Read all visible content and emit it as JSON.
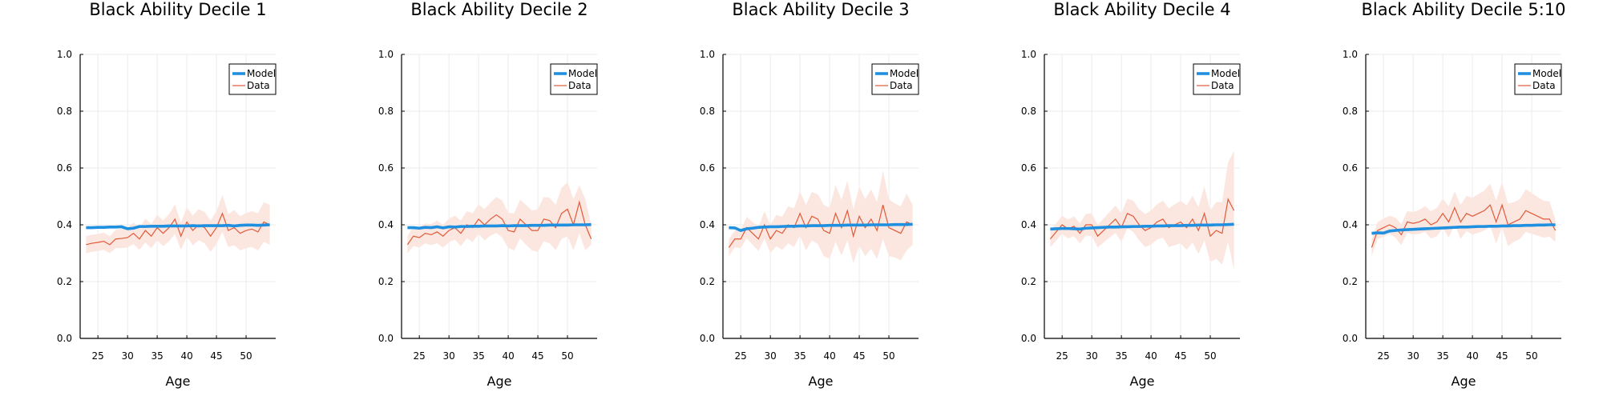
{
  "colors": {
    "model": "#1f8fdf",
    "data": "#e05a38",
    "band": "#fbe6e0",
    "grid": "#ebebeb",
    "axis": "#000000"
  },
  "legend": {
    "model_label": "Model",
    "data_label": "Data",
    "placement": "top-right"
  },
  "chart_data": [
    {
      "type": "line",
      "title": "Black Ability Decile 1",
      "xlabel": "Age",
      "ylabel": "",
      "xlim": [
        22,
        55
      ],
      "ylim": [
        0,
        1
      ],
      "xticks": [
        25,
        30,
        35,
        40,
        45,
        50
      ],
      "yticks": [
        "0.0",
        "0.2",
        "0.4",
        "0.6",
        "0.8",
        "1.0"
      ],
      "grid": true,
      "x": [
        23,
        24,
        25,
        26,
        27,
        28,
        29,
        30,
        31,
        32,
        33,
        34,
        35,
        36,
        37,
        38,
        39,
        40,
        41,
        42,
        43,
        44,
        45,
        46,
        47,
        48,
        49,
        50,
        51,
        52,
        53,
        54
      ],
      "series": [
        {
          "name": "Model",
          "values": [
            0.39,
            0.39,
            0.391,
            0.391,
            0.392,
            0.392,
            0.393,
            0.386,
            0.388,
            0.394,
            0.394,
            0.395,
            0.395,
            0.395,
            0.396,
            0.396,
            0.396,
            0.396,
            0.397,
            0.396,
            0.397,
            0.397,
            0.397,
            0.397,
            0.398,
            0.396,
            0.398,
            0.399,
            0.399,
            0.398,
            0.399,
            0.4
          ]
        },
        {
          "name": "Data",
          "values": [
            0.33,
            0.335,
            0.338,
            0.342,
            0.33,
            0.35,
            0.352,
            0.355,
            0.37,
            0.35,
            0.38,
            0.36,
            0.39,
            0.37,
            0.39,
            0.42,
            0.36,
            0.41,
            0.38,
            0.4,
            0.39,
            0.36,
            0.39,
            0.44,
            0.38,
            0.39,
            0.37,
            0.38,
            0.385,
            0.375,
            0.41,
            0.4
          ],
          "lower": [
            0.3,
            0.305,
            0.308,
            0.312,
            0.3,
            0.318,
            0.318,
            0.32,
            0.332,
            0.312,
            0.338,
            0.318,
            0.345,
            0.325,
            0.342,
            0.368,
            0.312,
            0.358,
            0.328,
            0.345,
            0.335,
            0.305,
            0.332,
            0.375,
            0.322,
            0.328,
            0.31,
            0.318,
            0.322,
            0.31,
            0.34,
            0.33
          ],
          "upper": [
            0.36,
            0.365,
            0.368,
            0.372,
            0.36,
            0.382,
            0.386,
            0.39,
            0.408,
            0.388,
            0.422,
            0.402,
            0.435,
            0.415,
            0.438,
            0.472,
            0.408,
            0.462,
            0.432,
            0.455,
            0.445,
            0.415,
            0.448,
            0.505,
            0.438,
            0.452,
            0.43,
            0.442,
            0.448,
            0.44,
            0.48,
            0.47
          ]
        }
      ]
    },
    {
      "type": "line",
      "title": "Black Ability Decile 2",
      "xlabel": "Age",
      "ylabel": "",
      "xlim": [
        22,
        55
      ],
      "ylim": [
        0,
        1
      ],
      "xticks": [
        25,
        30,
        35,
        40,
        45,
        50
      ],
      "yticks": [
        "0.0",
        "0.2",
        "0.4",
        "0.6",
        "0.8",
        "1.0"
      ],
      "grid": true,
      "x": [
        23,
        24,
        25,
        26,
        27,
        28,
        29,
        30,
        31,
        32,
        33,
        34,
        35,
        36,
        37,
        38,
        39,
        40,
        41,
        42,
        43,
        44,
        45,
        46,
        47,
        48,
        49,
        50,
        51,
        52,
        53,
        54
      ],
      "series": [
        {
          "name": "Model",
          "values": [
            0.39,
            0.39,
            0.388,
            0.391,
            0.39,
            0.393,
            0.389,
            0.393,
            0.392,
            0.394,
            0.394,
            0.395,
            0.395,
            0.396,
            0.396,
            0.396,
            0.397,
            0.396,
            0.397,
            0.397,
            0.397,
            0.398,
            0.398,
            0.398,
            0.399,
            0.399,
            0.399,
            0.399,
            0.4,
            0.4,
            0.4,
            0.401
          ]
        },
        {
          "name": "Data",
          "values": [
            0.33,
            0.36,
            0.355,
            0.37,
            0.365,
            0.375,
            0.36,
            0.38,
            0.39,
            0.37,
            0.4,
            0.39,
            0.42,
            0.4,
            0.42,
            0.435,
            0.42,
            0.38,
            0.375,
            0.42,
            0.4,
            0.38,
            0.38,
            0.42,
            0.415,
            0.39,
            0.44,
            0.455,
            0.4,
            0.48,
            0.4,
            0.35
          ],
          "lower": [
            0.3,
            0.325,
            0.32,
            0.335,
            0.328,
            0.335,
            0.32,
            0.338,
            0.348,
            0.325,
            0.352,
            0.34,
            0.368,
            0.345,
            0.362,
            0.372,
            0.355,
            0.318,
            0.31,
            0.352,
            0.33,
            0.31,
            0.305,
            0.342,
            0.335,
            0.31,
            0.35,
            0.36,
            0.31,
            0.37,
            0.31,
            0.33
          ],
          "upper": [
            0.36,
            0.395,
            0.39,
            0.405,
            0.402,
            0.415,
            0.4,
            0.422,
            0.432,
            0.415,
            0.448,
            0.44,
            0.472,
            0.455,
            0.478,
            0.498,
            0.485,
            0.442,
            0.44,
            0.488,
            0.47,
            0.45,
            0.455,
            0.498,
            0.495,
            0.47,
            0.53,
            0.55,
            0.49,
            0.54,
            0.49,
            0.4
          ]
        }
      ]
    },
    {
      "type": "line",
      "title": "Black Ability Decile 3",
      "xlabel": "Age",
      "ylabel": "",
      "xlim": [
        22,
        55
      ],
      "ylim": [
        0,
        1
      ],
      "xticks": [
        25,
        30,
        35,
        40,
        45,
        50
      ],
      "yticks": [
        "0.0",
        "0.2",
        "0.4",
        "0.6",
        "0.8",
        "1.0"
      ],
      "grid": true,
      "x": [
        23,
        24,
        25,
        26,
        27,
        28,
        29,
        30,
        31,
        32,
        33,
        34,
        35,
        36,
        37,
        38,
        39,
        40,
        41,
        42,
        43,
        44,
        45,
        46,
        47,
        48,
        49,
        50,
        51,
        52,
        53,
        54
      ],
      "series": [
        {
          "name": "Model",
          "values": [
            0.39,
            0.389,
            0.38,
            0.386,
            0.388,
            0.391,
            0.392,
            0.393,
            0.393,
            0.394,
            0.395,
            0.395,
            0.396,
            0.396,
            0.397,
            0.397,
            0.397,
            0.398,
            0.398,
            0.398,
            0.399,
            0.399,
            0.399,
            0.399,
            0.4,
            0.4,
            0.4,
            0.4,
            0.401,
            0.401,
            0.401,
            0.402
          ]
        },
        {
          "name": "Data",
          "values": [
            0.32,
            0.35,
            0.35,
            0.39,
            0.37,
            0.35,
            0.4,
            0.35,
            0.38,
            0.37,
            0.4,
            0.39,
            0.44,
            0.39,
            0.43,
            0.42,
            0.38,
            0.37,
            0.44,
            0.39,
            0.45,
            0.36,
            0.43,
            0.39,
            0.42,
            0.38,
            0.47,
            0.39,
            0.38,
            0.37,
            0.41,
            0.4
          ],
          "lower": [
            0.29,
            0.32,
            0.318,
            0.352,
            0.33,
            0.308,
            0.352,
            0.3,
            0.325,
            0.312,
            0.335,
            0.322,
            0.362,
            0.31,
            0.345,
            0.332,
            0.29,
            0.28,
            0.34,
            0.292,
            0.345,
            0.265,
            0.325,
            0.29,
            0.315,
            0.28,
            0.35,
            0.29,
            0.285,
            0.275,
            0.31,
            0.33
          ],
          "upper": [
            0.35,
            0.38,
            0.382,
            0.428,
            0.41,
            0.392,
            0.448,
            0.4,
            0.435,
            0.428,
            0.465,
            0.458,
            0.518,
            0.47,
            0.515,
            0.508,
            0.47,
            0.46,
            0.54,
            0.488,
            0.555,
            0.455,
            0.535,
            0.49,
            0.525,
            0.48,
            0.59,
            0.49,
            0.475,
            0.465,
            0.51,
            0.47
          ]
        }
      ]
    },
    {
      "type": "line",
      "title": "Black Ability Decile 4",
      "xlabel": "Age",
      "ylabel": "",
      "xlim": [
        22,
        55
      ],
      "ylim": [
        0,
        1
      ],
      "xticks": [
        25,
        30,
        35,
        40,
        45,
        50
      ],
      "yticks": [
        "0.0",
        "0.2",
        "0.4",
        "0.6",
        "0.8",
        "1.0"
      ],
      "grid": true,
      "x": [
        23,
        24,
        25,
        26,
        27,
        28,
        29,
        30,
        31,
        32,
        33,
        34,
        35,
        36,
        37,
        38,
        39,
        40,
        41,
        42,
        43,
        44,
        45,
        46,
        47,
        48,
        49,
        50,
        51,
        52,
        53,
        54
      ],
      "series": [
        {
          "name": "Model",
          "values": [
            0.385,
            0.386,
            0.387,
            0.387,
            0.386,
            0.385,
            0.388,
            0.389,
            0.39,
            0.391,
            0.392,
            0.392,
            0.393,
            0.393,
            0.394,
            0.394,
            0.395,
            0.395,
            0.396,
            0.396,
            0.397,
            0.397,
            0.397,
            0.398,
            0.398,
            0.399,
            0.399,
            0.399,
            0.4,
            0.4,
            0.401,
            0.402
          ]
        },
        {
          "name": "Data",
          "values": [
            0.35,
            0.375,
            0.4,
            0.385,
            0.395,
            0.37,
            0.4,
            0.4,
            0.36,
            0.38,
            0.4,
            0.42,
            0.39,
            0.44,
            0.43,
            0.4,
            0.38,
            0.39,
            0.41,
            0.42,
            0.39,
            0.4,
            0.41,
            0.39,
            0.42,
            0.38,
            0.44,
            0.36,
            0.38,
            0.37,
            0.49,
            0.45
          ],
          "lower": [
            0.32,
            0.345,
            0.368,
            0.352,
            0.36,
            0.335,
            0.362,
            0.36,
            0.32,
            0.338,
            0.355,
            0.372,
            0.34,
            0.388,
            0.375,
            0.345,
            0.322,
            0.33,
            0.348,
            0.355,
            0.322,
            0.328,
            0.335,
            0.312,
            0.338,
            0.298,
            0.345,
            0.27,
            0.28,
            0.26,
            0.34,
            0.24
          ],
          "upper": [
            0.38,
            0.405,
            0.432,
            0.418,
            0.43,
            0.405,
            0.438,
            0.44,
            0.4,
            0.422,
            0.445,
            0.468,
            0.44,
            0.492,
            0.485,
            0.455,
            0.438,
            0.45,
            0.472,
            0.485,
            0.458,
            0.472,
            0.485,
            0.468,
            0.502,
            0.462,
            0.535,
            0.45,
            0.48,
            0.48,
            0.62,
            0.66
          ]
        }
      ]
    },
    {
      "type": "line",
      "title": "Black Ability Decile 5:10",
      "xlabel": "Age",
      "ylabel": "",
      "xlim": [
        22,
        55
      ],
      "ylim": [
        0,
        1
      ],
      "xticks": [
        25,
        30,
        35,
        40,
        45,
        50
      ],
      "yticks": [
        "0.0",
        "0.2",
        "0.4",
        "0.6",
        "0.8",
        "1.0"
      ],
      "grid": true,
      "x": [
        23,
        24,
        25,
        26,
        27,
        28,
        29,
        30,
        31,
        32,
        33,
        34,
        35,
        36,
        37,
        38,
        39,
        40,
        41,
        42,
        43,
        44,
        45,
        46,
        47,
        48,
        49,
        50,
        51,
        52,
        53,
        54
      ],
      "series": [
        {
          "name": "Model",
          "values": [
            0.37,
            0.372,
            0.371,
            0.378,
            0.38,
            0.382,
            0.383,
            0.384,
            0.385,
            0.386,
            0.387,
            0.388,
            0.389,
            0.39,
            0.391,
            0.392,
            0.392,
            0.393,
            0.394,
            0.394,
            0.395,
            0.395,
            0.396,
            0.396,
            0.397,
            0.397,
            0.398,
            0.398,
            0.399,
            0.399,
            0.4,
            0.4
          ]
        },
        {
          "name": "Data",
          "values": [
            0.32,
            0.38,
            0.39,
            0.4,
            0.39,
            0.365,
            0.41,
            0.405,
            0.41,
            0.42,
            0.4,
            0.41,
            0.44,
            0.41,
            0.46,
            0.41,
            0.44,
            0.43,
            0.44,
            0.45,
            0.47,
            0.41,
            0.47,
            0.4,
            0.41,
            0.42,
            0.45,
            0.44,
            0.43,
            0.42,
            0.42,
            0.38
          ],
          "lower": [
            0.29,
            0.35,
            0.358,
            0.368,
            0.355,
            0.328,
            0.372,
            0.365,
            0.368,
            0.375,
            0.352,
            0.36,
            0.388,
            0.355,
            0.402,
            0.35,
            0.378,
            0.365,
            0.372,
            0.38,
            0.395,
            0.335,
            0.39,
            0.325,
            0.34,
            0.35,
            0.375,
            0.368,
            0.362,
            0.355,
            0.358,
            0.34
          ],
          "upper": [
            0.35,
            0.41,
            0.422,
            0.432,
            0.425,
            0.402,
            0.448,
            0.445,
            0.452,
            0.465,
            0.448,
            0.46,
            0.492,
            0.465,
            0.518,
            0.47,
            0.502,
            0.495,
            0.508,
            0.52,
            0.545,
            0.485,
            0.55,
            0.475,
            0.48,
            0.49,
            0.525,
            0.512,
            0.498,
            0.485,
            0.482,
            0.42
          ]
        }
      ]
    }
  ]
}
